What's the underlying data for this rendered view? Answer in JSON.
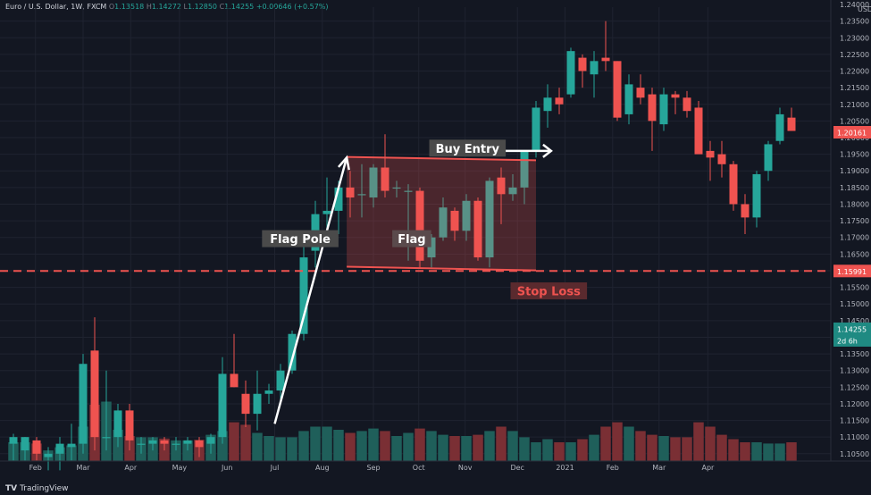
{
  "header": {
    "symbol": "Euro / U.S. Dollar, 1W, FXCM",
    "o_label": "O",
    "o_value": "1.13518",
    "h_label": "H",
    "h_value": "1.14272",
    "l_label": "L",
    "l_value": "1.12850",
    "c_label": "C",
    "c_value": "1.14255",
    "change": "+0.00646 (+0.57%)"
  },
  "brand": {
    "logo": "TV",
    "name": "TradingView"
  },
  "colors": {
    "background": "#131722",
    "up": "#26a69a",
    "down": "#ef5350",
    "up_volume": "#1f5f5a",
    "down_volume": "#7a2f34",
    "annotation": "#ffffff",
    "stop_line": "#ef5350"
  },
  "annotations": {
    "flag_pole": "Flag Pole",
    "flag": "Flag",
    "buy_entry": "Buy Entry",
    "stop_loss": "Stop Loss"
  },
  "price_tags": {
    "last_close": "1.20161",
    "stop_level": "1.15991",
    "current": "1.14255",
    "countdown": "2d 6h"
  },
  "chart_data": {
    "type": "candlestick",
    "title": "Euro / U.S. Dollar, 1W, FXCM",
    "y_unit": "USD",
    "ylim": [
      1.1028,
      1.2392
    ],
    "y_ticks": [
      "1.10500",
      "1.11000",
      "1.11500",
      "1.12000",
      "1.12500",
      "1.13000",
      "1.13500",
      "1.14000",
      "1.14500",
      "1.15000",
      "1.15500",
      "1.16000",
      "1.16500",
      "1.17000",
      "1.17500",
      "1.18000",
      "1.18500",
      "1.19000",
      "1.19500",
      "1.20000",
      "1.20500",
      "1.21000",
      "1.21500",
      "1.22000",
      "1.22500",
      "1.23000",
      "1.23500",
      "1.24000"
    ],
    "x_ticks": [
      {
        "label": "Feb",
        "index": 1.9
      },
      {
        "label": "Mar",
        "index": 6.0
      },
      {
        "label": "Apr",
        "index": 10.1
      },
      {
        "label": "May",
        "index": 14.3
      },
      {
        "label": "Jun",
        "index": 18.4
      },
      {
        "label": "Jul",
        "index": 22.5
      },
      {
        "label": "Aug",
        "index": 26.6
      },
      {
        "label": "Sep",
        "index": 31.0
      },
      {
        "label": "Oct",
        "index": 34.9
      },
      {
        "label": "Nov",
        "index": 38.9
      },
      {
        "label": "Dec",
        "index": 43.4
      },
      {
        "label": "2021",
        "index": 47.5
      },
      {
        "label": "Feb",
        "index": 51.6
      },
      {
        "label": "Mar",
        "index": 55.6
      },
      {
        "label": "Apr",
        "index": 59.8
      }
    ],
    "grid": true,
    "candles": [
      {
        "o": 1.108,
        "h": 1.111,
        "l": 1.103,
        "c": 1.11,
        "v": 0.3
      },
      {
        "o": 1.106,
        "h": 1.11,
        "l": 1.103,
        "c": 1.11,
        "v": 0.3
      },
      {
        "o": 1.109,
        "h": 1.11,
        "l": 1.103,
        "c": 1.105,
        "v": 0.28
      },
      {
        "o": 1.104,
        "h": 1.107,
        "l": 1.1,
        "c": 1.105,
        "v": 0.17
      },
      {
        "o": 1.105,
        "h": 1.11,
        "l": 1.1,
        "c": 1.108,
        "v": 0.22
      },
      {
        "o": 1.107,
        "h": 1.114,
        "l": 1.103,
        "c": 1.108,
        "v": 0.25
      },
      {
        "o": 1.108,
        "h": 1.135,
        "l": 1.105,
        "c": 1.132,
        "v": 0.55
      },
      {
        "o": 1.136,
        "h": 1.146,
        "l": 1.106,
        "c": 1.11,
        "v": 0.9
      },
      {
        "o": 1.11,
        "h": 1.13,
        "l": 1.106,
        "c": 1.11,
        "v": 0.95
      },
      {
        "o": 1.11,
        "h": 1.12,
        "l": 1.107,
        "c": 1.118,
        "v": 0.5
      },
      {
        "o": 1.118,
        "h": 1.12,
        "l": 1.106,
        "c": 1.109,
        "v": 0.4
      },
      {
        "o": 1.108,
        "h": 1.11,
        "l": 1.105,
        "c": 1.108,
        "v": 0.38
      },
      {
        "o": 1.108,
        "h": 1.11,
        "l": 1.106,
        "c": 1.109,
        "v": 0.38
      },
      {
        "o": 1.109,
        "h": 1.11,
        "l": 1.106,
        "c": 1.108,
        "v": 0.36
      },
      {
        "o": 1.108,
        "h": 1.11,
        "l": 1.106,
        "c": 1.108,
        "v": 0.33
      },
      {
        "o": 1.108,
        "h": 1.11,
        "l": 1.106,
        "c": 1.109,
        "v": 0.33
      },
      {
        "o": 1.109,
        "h": 1.11,
        "l": 1.104,
        "c": 1.107,
        "v": 0.34
      },
      {
        "o": 1.108,
        "h": 1.111,
        "l": 1.105,
        "c": 1.11,
        "v": 0.42
      },
      {
        "o": 1.11,
        "h": 1.134,
        "l": 1.108,
        "c": 1.129,
        "v": 0.48
      },
      {
        "o": 1.129,
        "h": 1.141,
        "l": 1.125,
        "c": 1.125,
        "v": 0.62
      },
      {
        "o": 1.123,
        "h": 1.127,
        "l": 1.113,
        "c": 1.117,
        "v": 0.58
      },
      {
        "o": 1.117,
        "h": 1.13,
        "l": 1.112,
        "c": 1.123,
        "v": 0.45
      },
      {
        "o": 1.123,
        "h": 1.126,
        "l": 1.12,
        "c": 1.124,
        "v": 0.4
      },
      {
        "o": 1.124,
        "h": 1.132,
        "l": 1.121,
        "c": 1.13,
        "v": 0.38
      },
      {
        "o": 1.13,
        "h": 1.142,
        "l": 1.129,
        "c": 1.141,
        "v": 0.38
      },
      {
        "o": 1.141,
        "h": 1.171,
        "l": 1.139,
        "c": 1.164,
        "v": 0.48
      },
      {
        "o": 1.166,
        "h": 1.181,
        "l": 1.161,
        "c": 1.177,
        "v": 0.55
      },
      {
        "o": 1.177,
        "h": 1.188,
        "l": 1.169,
        "c": 1.178,
        "v": 0.55
      },
      {
        "o": 1.178,
        "h": 1.187,
        "l": 1.171,
        "c": 1.185,
        "v": 0.5
      },
      {
        "o": 1.185,
        "h": 1.19,
        "l": 1.176,
        "c": 1.182,
        "v": 0.45
      },
      {
        "o": 1.183,
        "h": 1.192,
        "l": 1.176,
        "c": 1.183,
        "v": 0.48
      },
      {
        "o": 1.182,
        "h": 1.192,
        "l": 1.179,
        "c": 1.191,
        "v": 0.52
      },
      {
        "o": 1.191,
        "h": 1.201,
        "l": 1.182,
        "c": 1.184,
        "v": 0.48
      },
      {
        "o": 1.185,
        "h": 1.187,
        "l": 1.182,
        "c": 1.185,
        "v": 0.4
      },
      {
        "o": 1.184,
        "h": 1.186,
        "l": 1.163,
        "c": 1.184,
        "v": 0.45
      },
      {
        "o": 1.184,
        "h": 1.185,
        "l": 1.161,
        "c": 1.163,
        "v": 0.52
      },
      {
        "o": 1.164,
        "h": 1.171,
        "l": 1.161,
        "c": 1.17,
        "v": 0.48
      },
      {
        "o": 1.17,
        "h": 1.182,
        "l": 1.169,
        "c": 1.179,
        "v": 0.42
      },
      {
        "o": 1.178,
        "h": 1.179,
        "l": 1.169,
        "c": 1.172,
        "v": 0.4
      },
      {
        "o": 1.172,
        "h": 1.183,
        "l": 1.169,
        "c": 1.181,
        "v": 0.4
      },
      {
        "o": 1.181,
        "h": 1.182,
        "l": 1.163,
        "c": 1.164,
        "v": 0.42
      },
      {
        "o": 1.164,
        "h": 1.188,
        "l": 1.161,
        "c": 1.187,
        "v": 0.48
      },
      {
        "o": 1.188,
        "h": 1.191,
        "l": 1.174,
        "c": 1.183,
        "v": 0.55
      },
      {
        "o": 1.183,
        "h": 1.189,
        "l": 1.181,
        "c": 1.185,
        "v": 0.48
      },
      {
        "o": 1.185,
        "h": 1.196,
        "l": 1.18,
        "c": 1.196,
        "v": 0.38
      },
      {
        "o": 1.196,
        "h": 1.211,
        "l": 1.194,
        "c": 1.209,
        "v": 0.3
      },
      {
        "o": 1.208,
        "h": 1.216,
        "l": 1.203,
        "c": 1.212,
        "v": 0.35
      },
      {
        "o": 1.212,
        "h": 1.215,
        "l": 1.207,
        "c": 1.21,
        "v": 0.3
      },
      {
        "o": 1.213,
        "h": 1.227,
        "l": 1.212,
        "c": 1.226,
        "v": 0.3
      },
      {
        "o": 1.224,
        "h": 1.225,
        "l": 1.215,
        "c": 1.22,
        "v": 0.35
      },
      {
        "o": 1.219,
        "h": 1.226,
        "l": 1.212,
        "c": 1.223,
        "v": 0.42
      },
      {
        "o": 1.224,
        "h": 1.235,
        "l": 1.22,
        "c": 1.223,
        "v": 0.55
      },
      {
        "o": 1.223,
        "h": 1.223,
        "l": 1.205,
        "c": 1.206,
        "v": 0.62
      },
      {
        "o": 1.207,
        "h": 1.219,
        "l": 1.204,
        "c": 1.216,
        "v": 0.55
      },
      {
        "o": 1.215,
        "h": 1.219,
        "l": 1.21,
        "c": 1.212,
        "v": 0.48
      },
      {
        "o": 1.213,
        "h": 1.215,
        "l": 1.196,
        "c": 1.205,
        "v": 0.42
      },
      {
        "o": 1.204,
        "h": 1.215,
        "l": 1.202,
        "c": 1.213,
        "v": 0.4
      },
      {
        "o": 1.213,
        "h": 1.214,
        "l": 1.207,
        "c": 1.212,
        "v": 0.38
      },
      {
        "o": 1.212,
        "h": 1.214,
        "l": 1.206,
        "c": 1.208,
        "v": 0.38
      },
      {
        "o": 1.209,
        "h": 1.211,
        "l": 1.196,
        "c": 1.195,
        "v": 0.62
      },
      {
        "o": 1.196,
        "h": 1.199,
        "l": 1.187,
        "c": 1.194,
        "v": 0.55
      },
      {
        "o": 1.195,
        "h": 1.199,
        "l": 1.188,
        "c": 1.192,
        "v": 0.42
      },
      {
        "o": 1.192,
        "h": 1.193,
        "l": 1.178,
        "c": 1.18,
        "v": 0.35
      },
      {
        "o": 1.18,
        "h": 1.183,
        "l": 1.171,
        "c": 1.176,
        "v": 0.3
      },
      {
        "o": 1.176,
        "h": 1.19,
        "l": 1.173,
        "c": 1.189,
        "v": 0.3
      },
      {
        "o": 1.19,
        "h": 1.199,
        "l": 1.187,
        "c": 1.198,
        "v": 0.28
      },
      {
        "o": 1.199,
        "h": 1.209,
        "l": 1.198,
        "c": 1.207,
        "v": 0.28
      },
      {
        "o": 1.206,
        "h": 1.209,
        "l": 1.202,
        "c": 1.202,
        "v": 0.3
      }
    ]
  }
}
